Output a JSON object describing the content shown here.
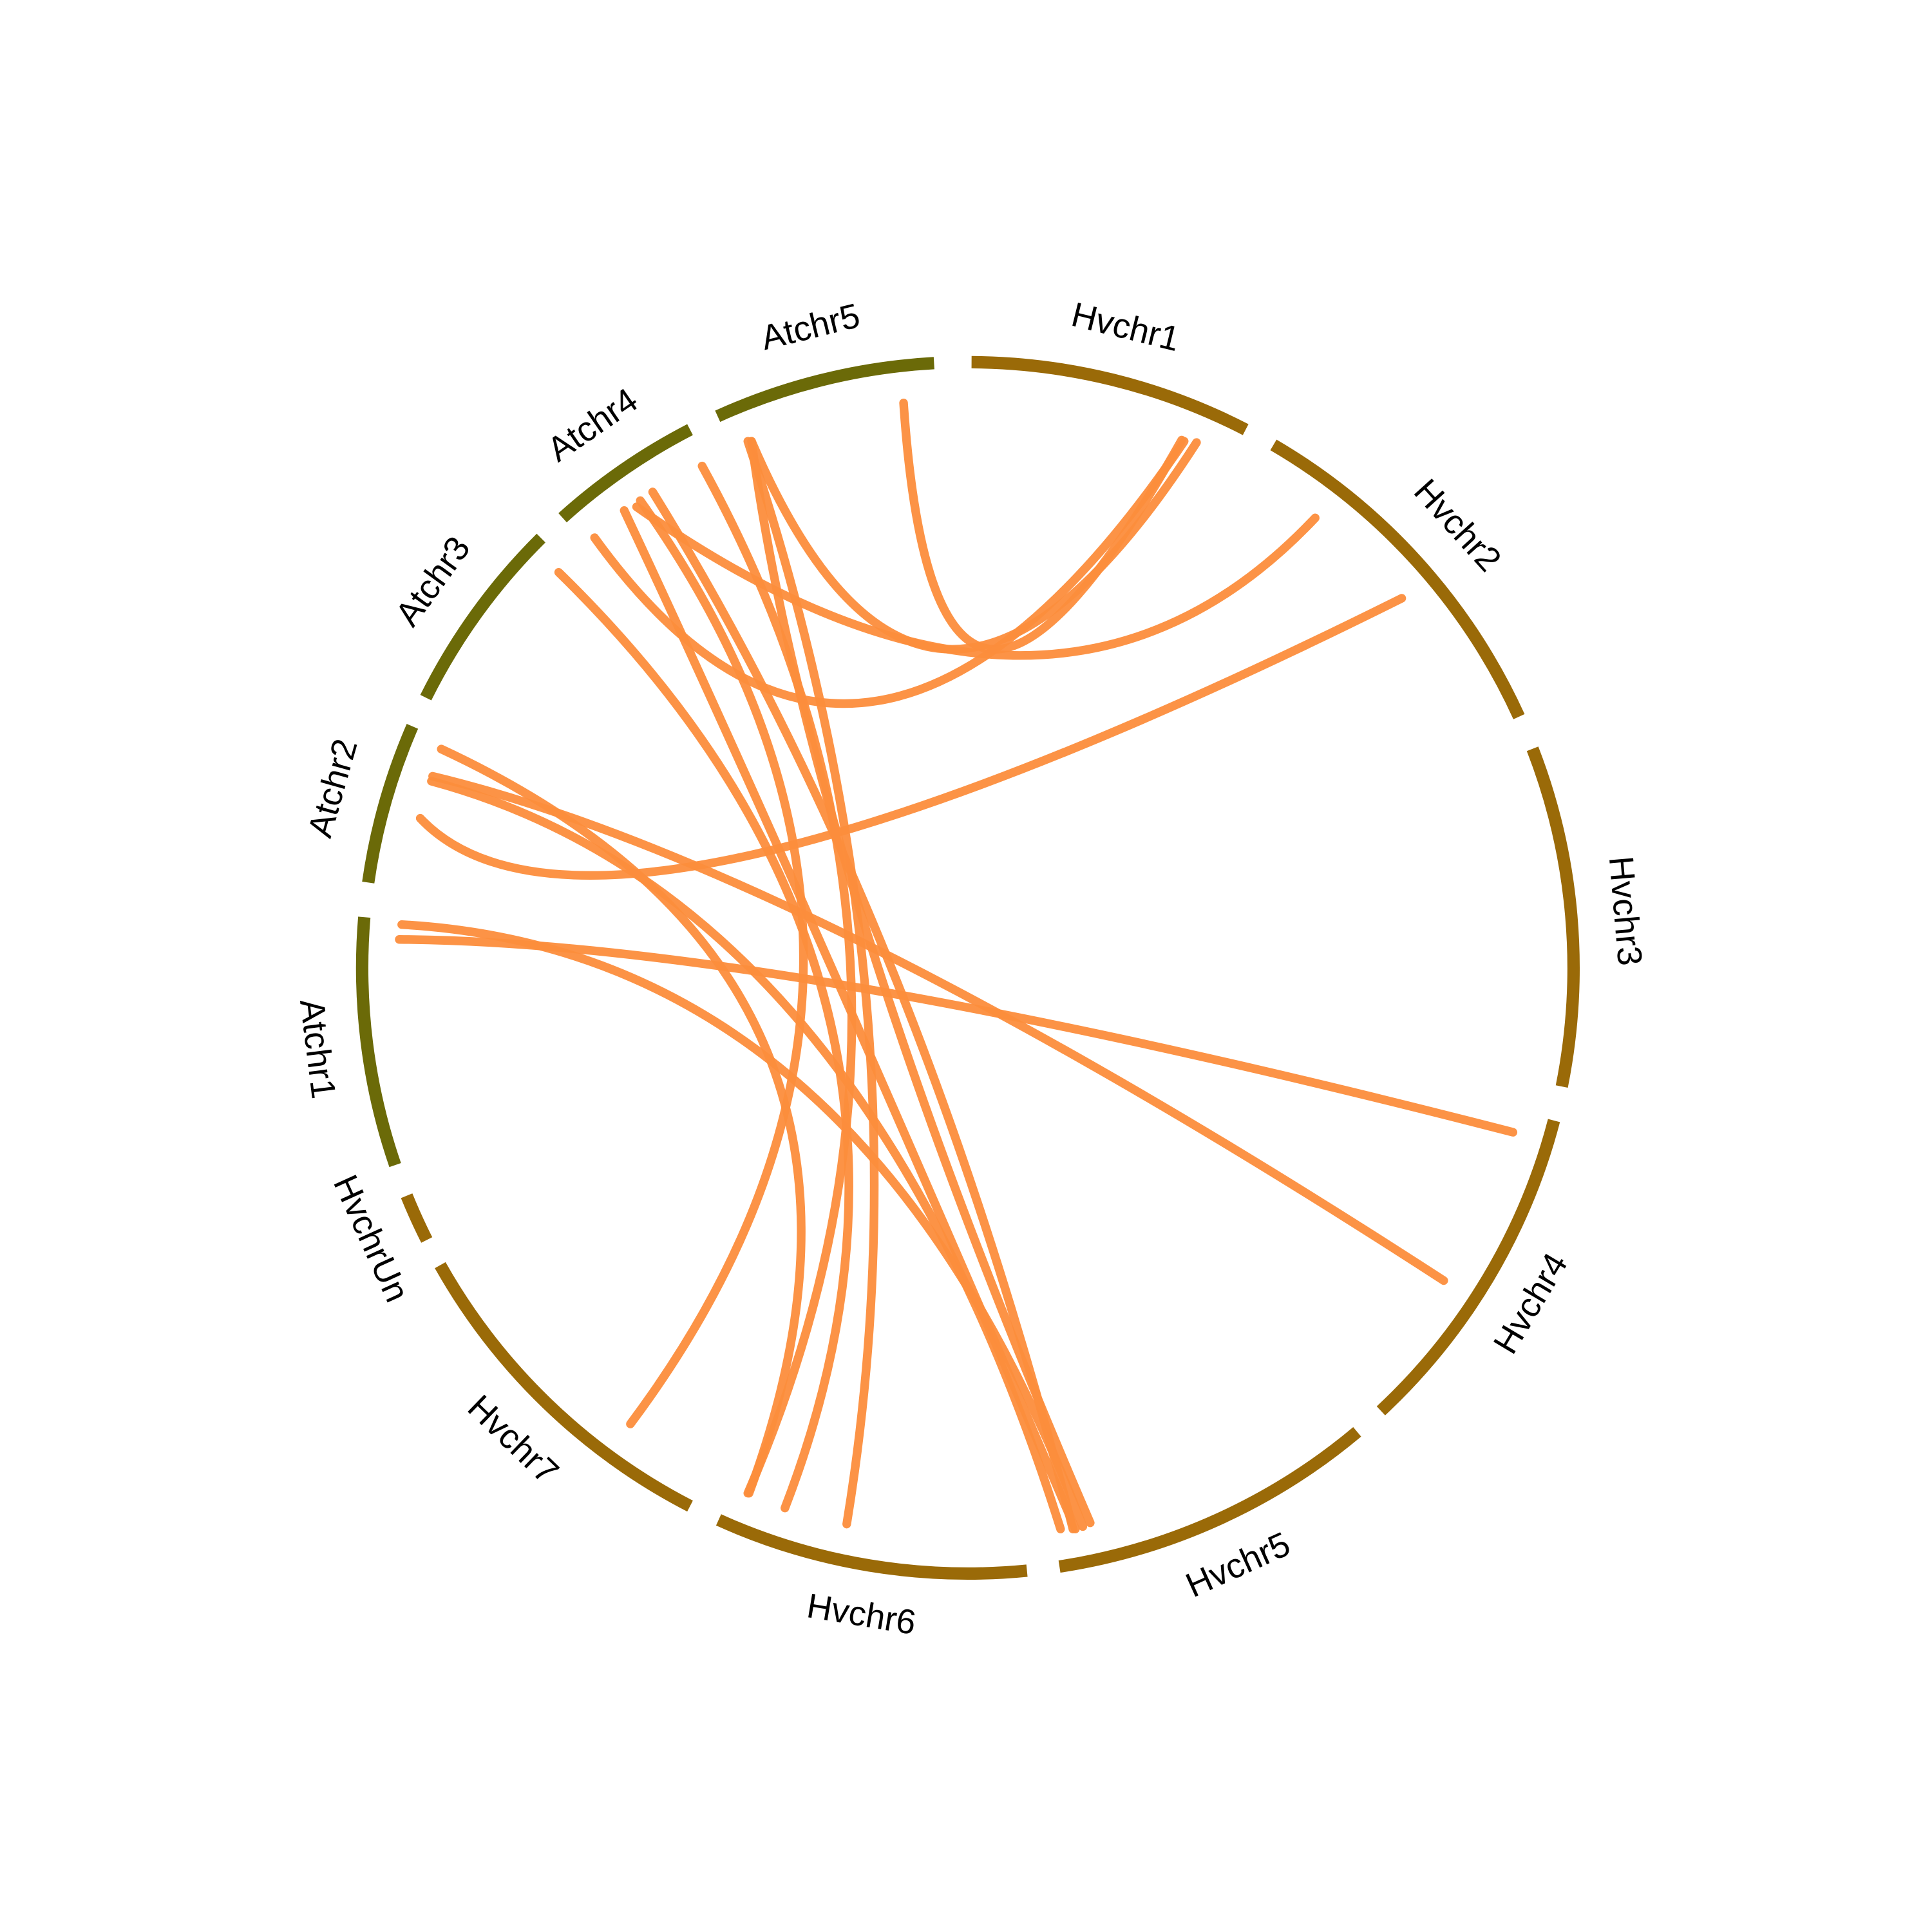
{
  "segments": [
    {
      "label": "Atchr1",
      "color": "#6b6a08"
    },
    {
      "label": "Atchr2",
      "color": "#6b6a08"
    },
    {
      "label": "Atchr3",
      "color": "#6b6a08"
    },
    {
      "label": "Atchr4",
      "color": "#6b6a08"
    },
    {
      "label": "Atchr5",
      "color": "#6b6a08"
    },
    {
      "label": "Hvchr1",
      "color": "#9a6a08"
    },
    {
      "label": "Hvchr2",
      "color": "#9a6a08"
    },
    {
      "label": "Hvchr3",
      "color": "#9a6a08"
    },
    {
      "label": "Hvchr4",
      "color": "#9a6a08"
    },
    {
      "label": "Hvchr5",
      "color": "#9a6a08"
    },
    {
      "label": "Hvchr6",
      "color": "#9a6a08"
    },
    {
      "label": "Hvchr7",
      "color": "#9a6a08"
    },
    {
      "label": "HvchrUn",
      "color": "#9a6a08"
    }
  ],
  "link_color": "#fc8d3c"
}
